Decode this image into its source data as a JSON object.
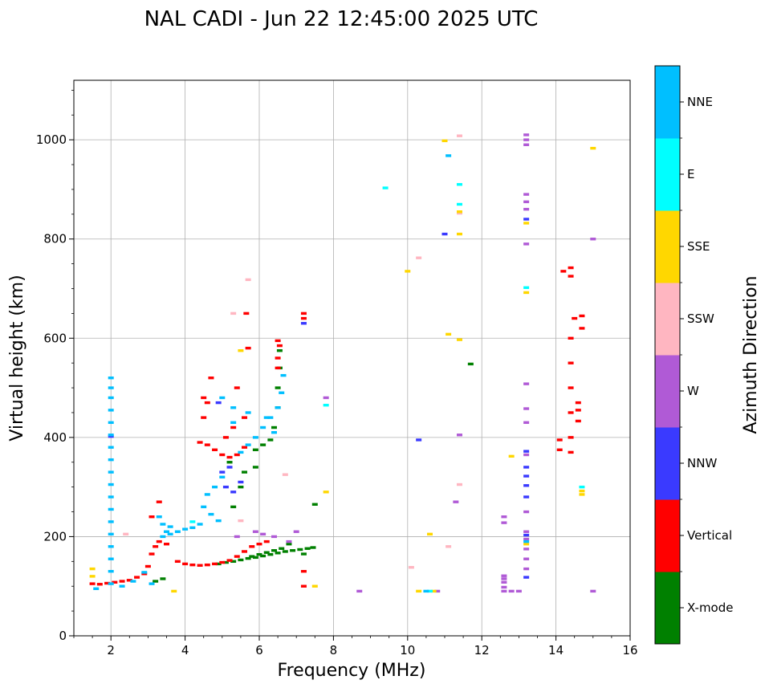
{
  "chart_data": {
    "type": "scatter",
    "title": "NAL CADI - Jun 22 12:45:00 2025 UTC",
    "xlabel": "Frequency (MHz)",
    "ylabel": "Virtual height (km)",
    "xlim": [
      1,
      16
    ],
    "ylim": [
      0,
      1120
    ],
    "xticks": [
      2,
      4,
      6,
      8,
      10,
      12,
      14,
      16
    ],
    "yticks": [
      0,
      200,
      400,
      600,
      800,
      1000
    ],
    "grid": true,
    "colorbar": {
      "label": "Azimuth Direction",
      "categories": [
        "X-mode",
        "Vertical",
        "NNW",
        "W",
        "SSW",
        "SSE",
        "E",
        "NNE"
      ],
      "colors": [
        "#008000",
        "#ff0000",
        "#3a3aff",
        "#b05ad6",
        "#ffb6c1",
        "#ffd700",
        "#00ffff",
        "#00bfff"
      ]
    },
    "series": [
      {
        "name": "X-mode",
        "color": "#008000",
        "points": [
          [
            4.9,
            145
          ],
          [
            5.1,
            148
          ],
          [
            5.3,
            150
          ],
          [
            5.5,
            153
          ],
          [
            5.7,
            156
          ],
          [
            5.9,
            158
          ],
          [
            6.1,
            161
          ],
          [
            6.3,
            164
          ],
          [
            6.5,
            167
          ],
          [
            6.7,
            170
          ],
          [
            6.9,
            172
          ],
          [
            7.1,
            174
          ],
          [
            7.3,
            176
          ],
          [
            7.45,
            178
          ],
          [
            5.8,
            160
          ],
          [
            6.0,
            164
          ],
          [
            6.2,
            168
          ],
          [
            6.4,
            172
          ],
          [
            6.6,
            176
          ],
          [
            5.9,
            375
          ],
          [
            6.1,
            385
          ],
          [
            6.3,
            395
          ],
          [
            6.4,
            420
          ],
          [
            6.5,
            460
          ],
          [
            6.5,
            500
          ],
          [
            6.55,
            540
          ],
          [
            6.55,
            575
          ],
          [
            5.5,
            300
          ],
          [
            5.3,
            260
          ],
          [
            5.6,
            330
          ],
          [
            5.2,
            350
          ],
          [
            5.9,
            340
          ],
          [
            3.2,
            110
          ],
          [
            3.4,
            115
          ],
          [
            7.2,
            165
          ],
          [
            6.8,
            185
          ],
          [
            7.5,
            265
          ],
          [
            11.7,
            548
          ]
        ]
      },
      {
        "name": "Vertical",
        "color": "#ff0000",
        "points": [
          [
            1.5,
            105
          ],
          [
            1.7,
            104
          ],
          [
            1.9,
            106
          ],
          [
            2.1,
            108
          ],
          [
            2.3,
            110
          ],
          [
            2.5,
            112
          ],
          [
            2.7,
            118
          ],
          [
            2.9,
            125
          ],
          [
            3.0,
            140
          ],
          [
            3.1,
            165
          ],
          [
            3.2,
            180
          ],
          [
            3.3,
            190
          ],
          [
            3.5,
            185
          ],
          [
            3.8,
            150
          ],
          [
            4.0,
            145
          ],
          [
            4.2,
            143
          ],
          [
            4.4,
            142
          ],
          [
            4.6,
            143
          ],
          [
            4.8,
            145
          ],
          [
            5.0,
            148
          ],
          [
            5.2,
            152
          ],
          [
            5.4,
            160
          ],
          [
            5.6,
            170
          ],
          [
            5.8,
            180
          ],
          [
            6.0,
            185
          ],
          [
            6.2,
            190
          ],
          [
            4.4,
            390
          ],
          [
            4.6,
            385
          ],
          [
            4.8,
            375
          ],
          [
            5.0,
            365
          ],
          [
            5.2,
            360
          ],
          [
            5.4,
            365
          ],
          [
            5.6,
            380
          ],
          [
            5.1,
            400
          ],
          [
            5.3,
            420
          ],
          [
            4.5,
            440
          ],
          [
            4.5,
            480
          ],
          [
            4.6,
            470
          ],
          [
            6.5,
            540
          ],
          [
            6.5,
            560
          ],
          [
            6.55,
            585
          ],
          [
            6.5,
            595
          ],
          [
            5.7,
            580
          ],
          [
            5.6,
            440
          ],
          [
            5.4,
            500
          ],
          [
            4.7,
            520
          ],
          [
            3.3,
            270
          ],
          [
            3.1,
            240
          ],
          [
            7.2,
            640
          ],
          [
            7.2,
            650
          ],
          [
            5.65,
            650
          ],
          [
            7.2,
            100
          ],
          [
            7.2,
            130
          ],
          [
            14.2,
            735
          ],
          [
            14.4,
            742
          ],
          [
            14.4,
            725
          ],
          [
            14.5,
            640
          ],
          [
            14.4,
            600
          ],
          [
            14.4,
            550
          ],
          [
            14.4,
            500
          ],
          [
            14.4,
            450
          ],
          [
            14.4,
            400
          ],
          [
            14.4,
            370
          ],
          [
            14.6,
            470
          ],
          [
            14.6,
            455
          ],
          [
            14.7,
            645
          ],
          [
            14.7,
            620
          ],
          [
            14.6,
            433
          ],
          [
            14.1,
            395
          ],
          [
            14.1,
            375
          ]
        ]
      },
      {
        "name": "NNW",
        "color": "#3a3aff",
        "points": [
          [
            5.0,
            330
          ],
          [
            5.2,
            340
          ],
          [
            5.3,
            290
          ],
          [
            5.5,
            310
          ],
          [
            5.1,
            300
          ],
          [
            4.9,
            470
          ],
          [
            13.2,
            372
          ],
          [
            13.2,
            340
          ],
          [
            13.2,
            322
          ],
          [
            13.2,
            303
          ],
          [
            13.2,
            280
          ],
          [
            13.2,
            203
          ],
          [
            13.2,
            118
          ],
          [
            13.2,
            840
          ],
          [
            10.3,
            395
          ],
          [
            11.0,
            810
          ],
          [
            2.0,
            402
          ],
          [
            7.2,
            630
          ]
        ]
      },
      {
        "name": "W",
        "color": "#b05ad6",
        "points": [
          [
            12.6,
            90
          ],
          [
            12.6,
            98
          ],
          [
            12.6,
            108
          ],
          [
            12.6,
            115
          ],
          [
            12.6,
            121
          ],
          [
            12.6,
            228
          ],
          [
            12.6,
            240
          ],
          [
            12.8,
            90
          ],
          [
            13.0,
            90
          ],
          [
            13.2,
            135
          ],
          [
            13.2,
            155
          ],
          [
            13.2,
            175
          ],
          [
            13.2,
            195
          ],
          [
            13.2,
            210
          ],
          [
            13.2,
            250
          ],
          [
            13.2,
            365
          ],
          [
            13.2,
            430
          ],
          [
            13.2,
            458
          ],
          [
            13.2,
            508
          ],
          [
            13.2,
            790
          ],
          [
            13.2,
            860
          ],
          [
            13.2,
            875
          ],
          [
            13.2,
            890
          ],
          [
            13.2,
            990
          ],
          [
            13.2,
            1000
          ],
          [
            13.2,
            1010
          ],
          [
            15.0,
            800
          ],
          [
            15.0,
            90
          ],
          [
            8.7,
            90
          ],
          [
            10.8,
            90
          ],
          [
            11.4,
            405
          ],
          [
            11.3,
            270
          ],
          [
            7.8,
            480
          ],
          [
            5.9,
            210
          ],
          [
            6.1,
            205
          ],
          [
            6.4,
            200
          ],
          [
            6.8,
            190
          ],
          [
            7.0,
            210
          ],
          [
            5.4,
            200
          ]
        ]
      },
      {
        "name": "SSW",
        "color": "#ffb6c1",
        "points": [
          [
            11.4,
            1008
          ],
          [
            11.4,
            852
          ],
          [
            11.4,
            305
          ],
          [
            10.3,
            762
          ],
          [
            11.1,
            180
          ],
          [
            10.1,
            138
          ],
          [
            6.7,
            325
          ],
          [
            5.7,
            718
          ],
          [
            2.4,
            205
          ],
          [
            5.3,
            650
          ],
          [
            5.5,
            232
          ]
        ]
      },
      {
        "name": "SSE",
        "color": "#ffd700",
        "points": [
          [
            11.0,
            998
          ],
          [
            11.4,
            855
          ],
          [
            11.4,
            810
          ],
          [
            11.1,
            608
          ],
          [
            11.4,
            597
          ],
          [
            10.0,
            735
          ],
          [
            10.6,
            205
          ],
          [
            10.3,
            90
          ],
          [
            10.7,
            90
          ],
          [
            12.8,
            362
          ],
          [
            13.2,
            692
          ],
          [
            13.2,
            832
          ],
          [
            13.2,
            185
          ],
          [
            14.7,
            292
          ],
          [
            14.7,
            285
          ],
          [
            15.0,
            983
          ],
          [
            7.8,
            290
          ],
          [
            3.7,
            90
          ],
          [
            1.5,
            120
          ],
          [
            1.5,
            135
          ],
          [
            5.5,
            575
          ],
          [
            7.5,
            100
          ]
        ]
      },
      {
        "name": "E",
        "color": "#00ffff",
        "points": [
          [
            9.4,
            903
          ],
          [
            11.4,
            910
          ],
          [
            11.4,
            870
          ],
          [
            13.2,
            702
          ],
          [
            14.7,
            300
          ],
          [
            10.6,
            90
          ],
          [
            7.8,
            465
          ],
          [
            4.2,
            230
          ]
        ]
      },
      {
        "name": "NNE",
        "color": "#00bfff",
        "points": [
          [
            2.0,
            520
          ],
          [
            2.0,
            500
          ],
          [
            2.0,
            480
          ],
          [
            2.0,
            455
          ],
          [
            2.0,
            430
          ],
          [
            2.0,
            405
          ],
          [
            2.0,
            380
          ],
          [
            2.0,
            355
          ],
          [
            2.0,
            330
          ],
          [
            2.0,
            305
          ],
          [
            2.0,
            280
          ],
          [
            2.0,
            255
          ],
          [
            2.0,
            230
          ],
          [
            2.0,
            205
          ],
          [
            2.0,
            180
          ],
          [
            2.0,
            155
          ],
          [
            2.0,
            130
          ],
          [
            2.0,
            105
          ],
          [
            3.3,
            240
          ],
          [
            3.4,
            225
          ],
          [
            3.5,
            210
          ],
          [
            3.6,
            205
          ],
          [
            3.8,
            210
          ],
          [
            4.0,
            215
          ],
          [
            4.2,
            218
          ],
          [
            4.4,
            225
          ],
          [
            3.4,
            200
          ],
          [
            3.6,
            220
          ],
          [
            4.5,
            260
          ],
          [
            4.6,
            285
          ],
          [
            4.8,
            300
          ],
          [
            5.0,
            320
          ],
          [
            4.7,
            245
          ],
          [
            4.9,
            232
          ],
          [
            5.5,
            370
          ],
          [
            5.7,
            385
          ],
          [
            5.9,
            400
          ],
          [
            6.1,
            420
          ],
          [
            6.3,
            440
          ],
          [
            6.5,
            460
          ],
          [
            6.6,
            490
          ],
          [
            6.65,
            525
          ],
          [
            5.3,
            430
          ],
          [
            5.0,
            480
          ],
          [
            5.3,
            460
          ],
          [
            5.7,
            450
          ],
          [
            6.2,
            440
          ],
          [
            6.4,
            410
          ],
          [
            2.3,
            100
          ],
          [
            2.6,
            110
          ],
          [
            2.9,
            128
          ],
          [
            3.1,
            105
          ],
          [
            1.6,
            95
          ],
          [
            11.1,
            968
          ],
          [
            13.2,
            190
          ],
          [
            10.5,
            90
          ]
        ]
      }
    ]
  }
}
